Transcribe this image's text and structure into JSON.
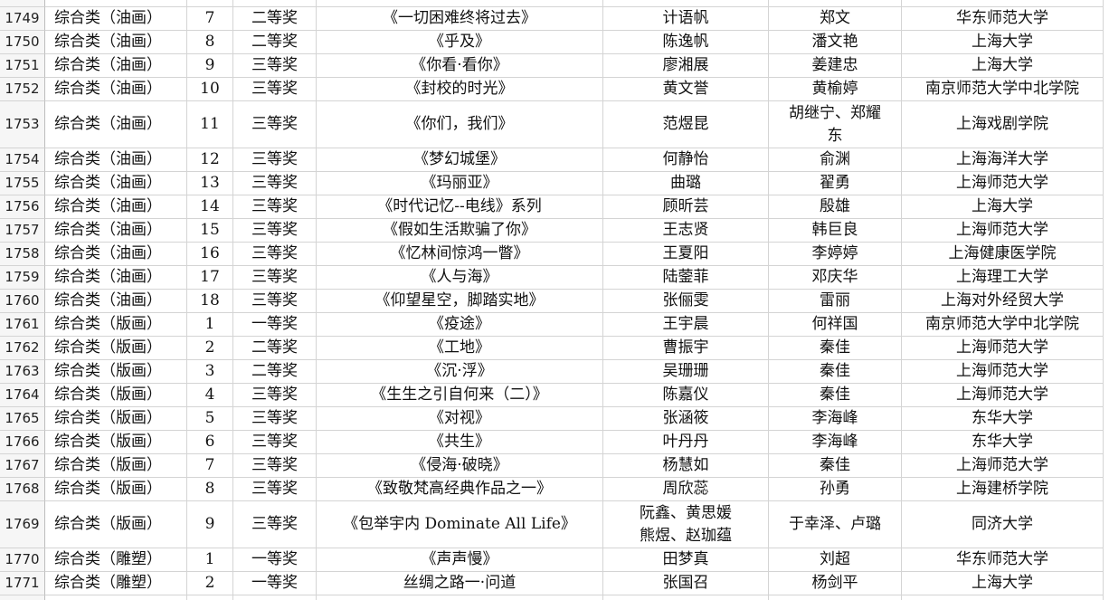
{
  "table": {
    "rows": [
      [
        "1749",
        "综合类（油画）",
        "7",
        "二等奖",
        "《一切困难终将过去》",
        "计语帆",
        "郑文",
        "华东师范大学"
      ],
      [
        "1750",
        "综合类（油画）",
        "8",
        "二等奖",
        "《乎及》",
        "陈逸帆",
        "潘文艳",
        "上海大学"
      ],
      [
        "1751",
        "综合类（油画）",
        "9",
        "三等奖",
        "《你看·看你》",
        "廖湘展",
        "姜建忠",
        "上海大学"
      ],
      [
        "1752",
        "综合类（油画）",
        "10",
        "三等奖",
        "《封校的时光》",
        "黄文誉",
        "黄榆婷",
        "南京师范大学中北学院"
      ],
      [
        "1753",
        "综合类（油画）",
        "11",
        "三等奖",
        "《你们，我们》",
        "范煜昆",
        "胡继宁、郑耀\n东",
        "上海戏剧学院"
      ],
      [
        "1754",
        "综合类（油画）",
        "12",
        "三等奖",
        "《梦幻城堡》",
        "何静怡",
        "俞渊",
        "上海海洋大学"
      ],
      [
        "1755",
        "综合类（油画）",
        "13",
        "三等奖",
        "《玛丽亚》",
        "曲璐",
        "翟勇",
        "上海师范大学"
      ],
      [
        "1756",
        "综合类（油画）",
        "14",
        "三等奖",
        "《时代记忆--电线》系列",
        "顾昕芸",
        "殷雄",
        "上海大学"
      ],
      [
        "1757",
        "综合类（油画）",
        "15",
        "三等奖",
        "《假如生活欺骗了你》",
        "王志贤",
        "韩巨良",
        "上海师范大学"
      ],
      [
        "1758",
        "综合类（油画）",
        "16",
        "三等奖",
        "《忆林间惊鸿一瞥》",
        "王夏阳",
        "李婷婷",
        "上海健康医学院"
      ],
      [
        "1759",
        "综合类（油画）",
        "17",
        "三等奖",
        "《人与海》",
        "陆蓥菲",
        "邓庆华",
        "上海理工大学"
      ],
      [
        "1760",
        "综合类（油画）",
        "18",
        "三等奖",
        "《仰望星空，脚踏实地》",
        "张俪雯",
        "雷丽",
        "上海对外经贸大学"
      ],
      [
        "1761",
        "综合类（版画）",
        "1",
        "一等奖",
        "《疫途》",
        "王宇晨",
        "何祥国",
        "南京师范大学中北学院"
      ],
      [
        "1762",
        "综合类（版画）",
        "2",
        "二等奖",
        "《工地》",
        "曹振宇",
        "秦佳",
        "上海师范大学"
      ],
      [
        "1763",
        "综合类（版画）",
        "3",
        "二等奖",
        "《沉·浮》",
        "吴珊珊",
        "秦佳",
        "上海师范大学"
      ],
      [
        "1764",
        "综合类（版画）",
        "4",
        "三等奖",
        "《生生之引自何来（二）》",
        "陈嘉仪",
        "秦佳",
        "上海师范大学"
      ],
      [
        "1765",
        "综合类（版画）",
        "5",
        "三等奖",
        "《对视》",
        "张涵筱",
        "李海峰",
        "东华大学"
      ],
      [
        "1766",
        "综合类（版画）",
        "6",
        "三等奖",
        "《共生》",
        "叶丹丹",
        "李海峰",
        "东华大学"
      ],
      [
        "1767",
        "综合类（版画）",
        "7",
        "三等奖",
        "《侵海·破晓》",
        "杨慧如",
        "秦佳",
        "上海师范大学"
      ],
      [
        "1768",
        "综合类（版画）",
        "8",
        "三等奖",
        "《致敬梵高经典作品之一》",
        "周欣蕊",
        "孙勇",
        "上海建桥学院"
      ],
      [
        "1769",
        "综合类（版画）",
        "9",
        "三等奖",
        "《包举宇内 Dominate All Life》",
        "阮鑫、黄思媛\n熊煜、赵珈蕴",
        "于幸泽、卢璐",
        "同济大学"
      ],
      [
        "1770",
        "综合类（雕塑）",
        "1",
        "一等奖",
        "《声声慢》",
        "田梦真",
        "刘超",
        "华东师范大学"
      ],
      [
        "1771",
        "综合类（雕塑）",
        "2",
        "一等奖",
        "丝绸之路一·问道",
        "张国召",
        "杨剑平",
        "上海大学"
      ]
    ]
  }
}
